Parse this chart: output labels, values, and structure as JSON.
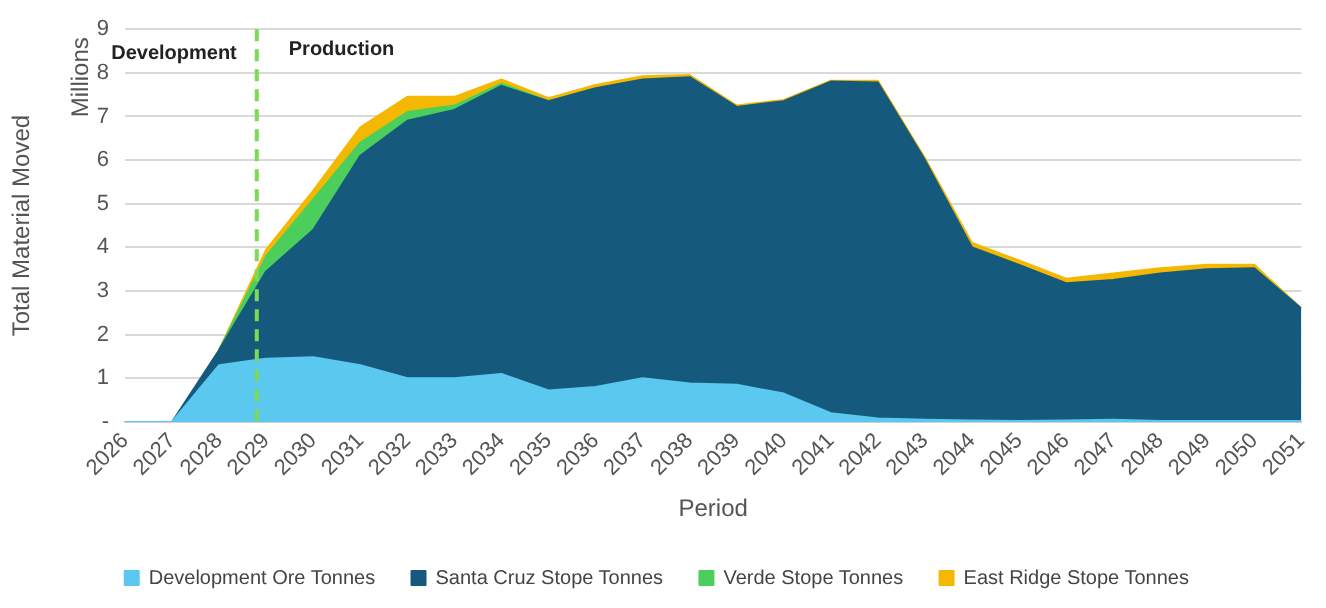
{
  "chart_data": {
    "type": "area",
    "stacked": true,
    "xlabel": "Period",
    "ylabel": "Total Material Moved",
    "annotations": [
      "Development",
      "Production",
      "Millions"
    ],
    "x": [
      2026,
      2027,
      2028,
      2029,
      2030,
      2031,
      2032,
      2033,
      2034,
      2035,
      2036,
      2037,
      2038,
      2039,
      2040,
      2041,
      2042,
      2043,
      2044,
      2045,
      2046,
      2047,
      2048,
      2049,
      2050,
      2051
    ],
    "xlim": [
      2026,
      2051
    ],
    "xticks": [
      2026,
      2027,
      2028,
      2029,
      2030,
      2031,
      2032,
      2033,
      2034,
      2035,
      2036,
      2037,
      2038,
      2039,
      2040,
      2041,
      2042,
      2043,
      2044,
      2045,
      2046,
      2047,
      2048,
      2049,
      2050,
      2051
    ],
    "ylim": [
      0,
      9
    ],
    "yticks": [
      {
        "value": 0,
        "label": "-"
      },
      1,
      2,
      3,
      4,
      5,
      6,
      7,
      8,
      9
    ],
    "grid": "y",
    "legend": "bottom",
    "marker": "none",
    "ref_lines": [
      {
        "axis": "x",
        "value": 2028.8,
        "color": "#7ed957",
        "line_style": "dashed"
      }
    ],
    "series": [
      {
        "name": "Development Ore Tonnes",
        "color": "#5bc8f0",
        "values": [
          0,
          0,
          1.3,
          1.45,
          1.48,
          1.3,
          1.0,
          1.0,
          1.1,
          0.72,
          0.8,
          1.0,
          0.88,
          0.85,
          0.65,
          0.2,
          0.08,
          0.05,
          0.03,
          0.02,
          0.03,
          0.05,
          0.02,
          0.02,
          0.02,
          0.02
        ]
      },
      {
        "name": "Santa Cruz Stope Tonnes",
        "color": "#155a7c",
        "values": [
          0,
          0,
          0.35,
          2.0,
          2.92,
          4.8,
          5.9,
          6.15,
          6.6,
          6.63,
          6.85,
          6.85,
          7.02,
          6.37,
          6.7,
          7.6,
          7.7,
          5.95,
          3.97,
          3.58,
          3.15,
          3.2,
          3.38,
          3.48,
          3.5,
          2.58
        ]
      },
      {
        "name": "Verde Stope Tonnes",
        "color": "#4cce5c",
        "values": [
          null,
          null,
          0,
          0.35,
          0.7,
          0.3,
          0.2,
          0.1,
          0.05,
          0,
          null,
          null,
          null,
          null,
          null,
          null,
          null,
          null,
          null,
          null,
          null,
          null,
          null,
          null,
          null,
          null
        ]
      },
      {
        "name": "East Ridge Stope Tonnes",
        "color": "#f5b800",
        "values": [
          null,
          null,
          0,
          0.15,
          0.2,
          0.35,
          0.35,
          0.2,
          0.1,
          0.07,
          0.07,
          0.07,
          0.05,
          0.03,
          0.03,
          0.02,
          0.04,
          0.05,
          0.1,
          0.1,
          0.1,
          0.15,
          0.12,
          0.1,
          0.08,
          0
        ]
      }
    ]
  }
}
